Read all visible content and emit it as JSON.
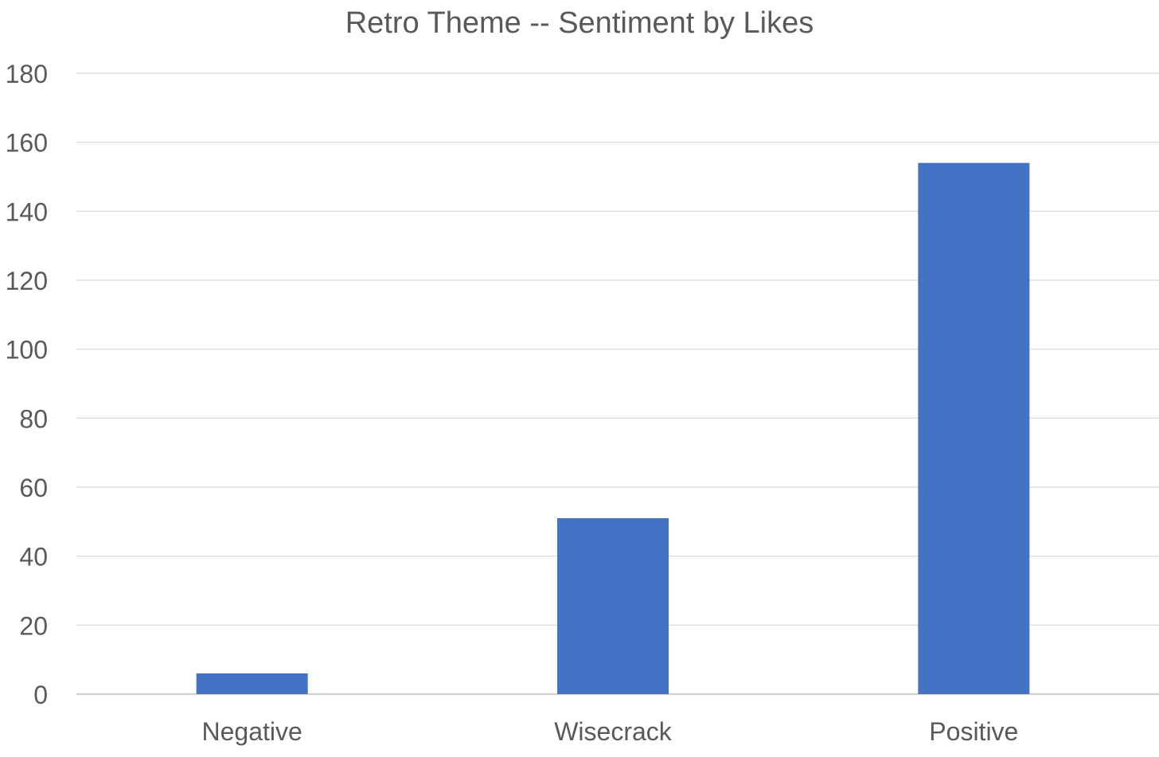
{
  "chart_data": {
    "type": "bar",
    "title": "Retro Theme -- Sentiment by Likes",
    "categories": [
      "Negative",
      "Wisecrack",
      "Positive"
    ],
    "values": [
      6,
      51,
      154
    ],
    "xlabel": "",
    "ylabel": "",
    "ylim": [
      0,
      180
    ],
    "yticks": [
      "0",
      "20",
      "40",
      "60",
      "80",
      "100",
      "120",
      "140",
      "160",
      "180"
    ],
    "grid": true,
    "legend": "none",
    "colors": {
      "bar": "#4472C4",
      "gridline": "#d9d9d9",
      "axis": "#bfbfbf",
      "text": "#595959"
    }
  }
}
